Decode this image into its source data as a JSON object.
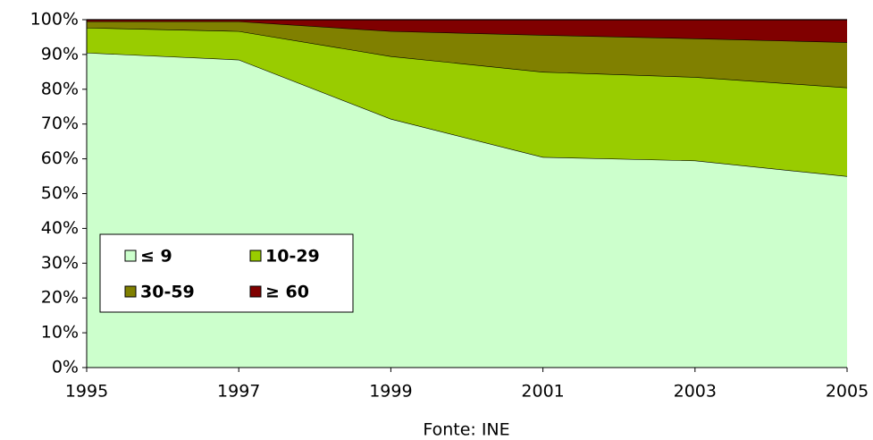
{
  "chart_data": {
    "type": "area",
    "stacked": true,
    "x_label": "Fonte: INE",
    "x": [
      1995,
      1997,
      1999,
      2001,
      2003,
      2005
    ],
    "xlim": [
      1995,
      2005
    ],
    "xticks": [
      1995,
      1997,
      1999,
      2001,
      2003,
      2005
    ],
    "ylim": [
      0,
      100
    ],
    "yticks": [
      {
        "value": 0,
        "label": "0%"
      },
      {
        "value": 10,
        "label": "10%"
      },
      {
        "value": 20,
        "label": "20%"
      },
      {
        "value": 30,
        "label": "30%"
      },
      {
        "value": 40,
        "label": "40%"
      },
      {
        "value": 50,
        "label": "50%"
      },
      {
        "value": 60,
        "label": "60%"
      },
      {
        "value": 70,
        "label": "70%"
      },
      {
        "value": 80,
        "label": "80%"
      },
      {
        "value": 90,
        "label": "90%"
      },
      {
        "value": 100,
        "label": "100%"
      }
    ],
    "grid": false,
    "legend": "lower left",
    "series": [
      {
        "name": "≤ 9",
        "color": "#ccffcc",
        "values": [
          90.5,
          88.5,
          71.5,
          60.5,
          59.5,
          55
        ]
      },
      {
        "name": "10-29",
        "color": "#99cc00",
        "values": [
          7.2,
          8.2,
          18,
          24.5,
          24,
          25.5
        ]
      },
      {
        "name": "30-59",
        "color": "#808000",
        "values": [
          1.8,
          2.8,
          7.2,
          10.6,
          11.1,
          13
        ]
      },
      {
        "name": "≥ 60",
        "color": "#800000",
        "values": [
          0.5,
          0.5,
          3.3,
          4.4,
          5.4,
          6.5
        ]
      }
    ]
  }
}
